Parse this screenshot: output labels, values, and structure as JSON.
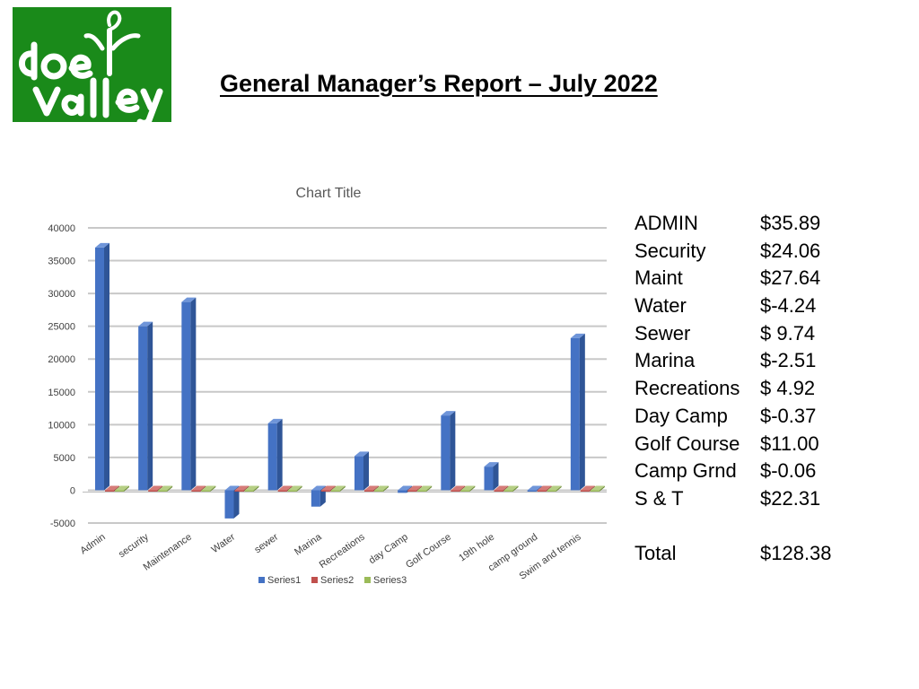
{
  "header": {
    "logo_text": "Doe Valley",
    "title": "General Manager’s Report – July 2022"
  },
  "colors": {
    "logo_green": "#1a8a1a",
    "series1": "#4472c4",
    "series2": "#c0504d",
    "series3": "#9bbb59",
    "grid": "#c8c8c8"
  },
  "chart_data": {
    "type": "bar",
    "title": "Chart Title",
    "categories": [
      "Admin",
      "security",
      "Maintenance",
      "Water",
      "sewer",
      "Marina",
      "Recreations",
      "day Camp",
      "Golf Course",
      "19th hole",
      "camp ground",
      "Swim and tennis"
    ],
    "series": [
      {
        "name": "Series1",
        "values": [
          37000,
          25000,
          28700,
          -4300,
          10200,
          -2500,
          5200,
          -400,
          11400,
          3600,
          -60,
          23200
        ]
      },
      {
        "name": "Series2",
        "values": [
          0,
          0,
          0,
          0,
          0,
          0,
          0,
          0,
          0,
          0,
          0,
          0
        ]
      },
      {
        "name": "Series3",
        "values": [
          0,
          0,
          0,
          0,
          0,
          0,
          0,
          0,
          0,
          0,
          0,
          0
        ]
      }
    ],
    "yticks": [
      "40000",
      "35000",
      "30000",
      "25000",
      "20000",
      "15000",
      "10000",
      "5000",
      "0",
      "-5000"
    ],
    "ylim": [
      -5000,
      40000
    ],
    "grid": true,
    "legend_position": "bottom"
  },
  "summary": {
    "rows": [
      {
        "label": "ADMIN",
        "amount": "$35.89"
      },
      {
        "label": "Security",
        "amount": "$24.06"
      },
      {
        "label": "Maint",
        "amount": "$27.64"
      },
      {
        "label": "Water",
        "amount": "$-4.24"
      },
      {
        "label": "Sewer",
        "amount": "$ 9.74"
      },
      {
        "label": "Marina",
        "amount": "$-2.51"
      },
      {
        "label": "Recreations",
        "amount": "$ 4.92"
      },
      {
        "label": "Day Camp",
        "amount": "$-0.37"
      },
      {
        "label": "Golf Course",
        "amount": "$11.00"
      },
      {
        "label": "Camp Grnd",
        "amount": "$-0.06"
      },
      {
        "label": "S & T",
        "amount": "$22.31"
      }
    ],
    "total_label": "Total",
    "total_amount": "$128.38"
  }
}
